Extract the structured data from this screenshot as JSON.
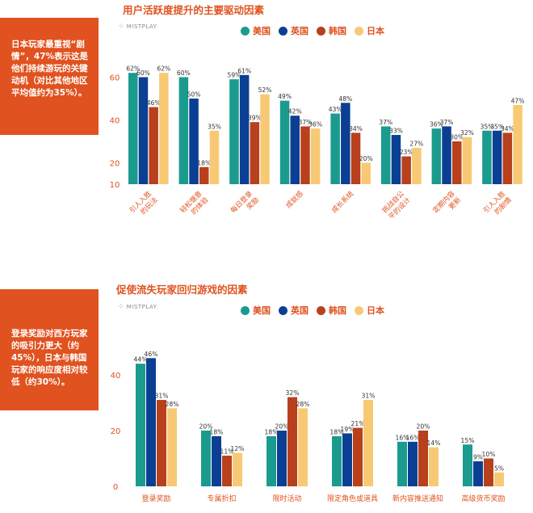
{
  "colors": {
    "accent": "#e0521f",
    "series": [
      "#1a9b8e",
      "#0b3f94",
      "#b8401c",
      "#f8c974"
    ]
  },
  "panel1": {
    "callout": "日本玩家最重视“剧情”，47%表示这是他们持续游玩的关键动机（对比其他地区平均值约为35%）。",
    "brand": "MISTPLAY",
    "legend": [
      "美国",
      "英国",
      "韩国",
      "日本"
    ]
  },
  "panel2": {
    "callout": "登录奖励对西方玩家的吸引力更大（约45%），日本与韩国玩家的响应度相对较低（约30%）。",
    "brand": "MISTPLAY",
    "legend": [
      "美国",
      "英国",
      "韩国",
      "日本"
    ]
  },
  "chart_data": [
    {
      "type": "bar",
      "title": "用户活跃度提升的主要驱动因素",
      "categories": [
        [
          "引人入胜",
          "的玩法"
        ],
        [
          "轻松惬意",
          "的体验"
        ],
        [
          "每日登录",
          "奖励"
        ],
        [
          "成就感"
        ],
        [
          "成长系统"
        ],
        [
          "挑战自公",
          "平的设计"
        ],
        [
          "定期内容",
          "更新"
        ],
        [
          "引人入胜",
          "的剧情"
        ]
      ],
      "series": [
        {
          "name": "美国",
          "values": [
            62,
            60,
            59,
            49,
            43,
            37,
            36,
            35
          ]
        },
        {
          "name": "英国",
          "values": [
            60,
            50,
            61,
            42,
            48,
            33,
            37,
            35
          ]
        },
        {
          "name": "韩国",
          "values": [
            46,
            18,
            39,
            37,
            34,
            23,
            30,
            34
          ]
        },
        {
          "name": "日本",
          "values": [
            62,
            35,
            52,
            36,
            20,
            27,
            32,
            47
          ]
        }
      ],
      "yticks": [
        10,
        20,
        40,
        60
      ],
      "legend_position": "top"
    },
    {
      "type": "bar",
      "title": "促使流失玩家回归游戏的因素",
      "categories": [
        "登录奖励",
        "专属折扣",
        "限时活动",
        "限定角色或道具",
        "新内容推送通知",
        "高级货币奖励"
      ],
      "series": [
        {
          "name": "美国",
          "values": [
            44,
            20,
            18,
            18,
            16,
            15
          ]
        },
        {
          "name": "英国",
          "values": [
            46,
            18,
            20,
            19,
            16,
            9
          ]
        },
        {
          "name": "韩国",
          "values": [
            31,
            11,
            32,
            21,
            20,
            10
          ]
        },
        {
          "name": "日本",
          "values": [
            28,
            12,
            28,
            31,
            14,
            5
          ]
        }
      ],
      "yticks": [
        0,
        20,
        40
      ],
      "legend_position": "top"
    }
  ]
}
